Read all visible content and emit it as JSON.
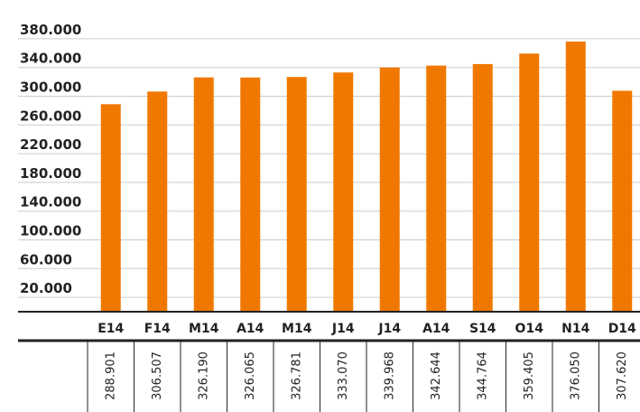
{
  "chart_data": {
    "type": "bar",
    "categories": [
      "E14",
      "F14",
      "M14",
      "A14",
      "M14",
      "J14",
      "J14",
      "A14",
      "S14",
      "O14",
      "N14",
      "D14"
    ],
    "values": [
      288901,
      306507,
      326190,
      326065,
      326781,
      333070,
      339968,
      342644,
      344764,
      359405,
      376050,
      307620
    ],
    "value_labels": [
      "288.901",
      "306.507",
      "326.190",
      "326.065",
      "326.781",
      "333.070",
      "339.968",
      "342.644",
      "344.764",
      "359.405",
      "376.050",
      "307.620"
    ],
    "color": "#f07800",
    "ylim": [
      0,
      400000
    ],
    "yticks": [
      {
        "value": 20000,
        "label": "20.000"
      },
      {
        "value": 60000,
        "label": "60.000"
      },
      {
        "value": 100000,
        "label": "100.000"
      },
      {
        "value": 140000,
        "label": "140.000"
      },
      {
        "value": 180000,
        "label": "180.000"
      },
      {
        "value": 220000,
        "label": "220.000"
      },
      {
        "value": 260000,
        "label": "260.000"
      },
      {
        "value": 300000,
        "label": "300.000"
      },
      {
        "value": 340000,
        "label": "340.000"
      },
      {
        "value": 380000,
        "label": "380.000"
      }
    ],
    "grid": true
  }
}
